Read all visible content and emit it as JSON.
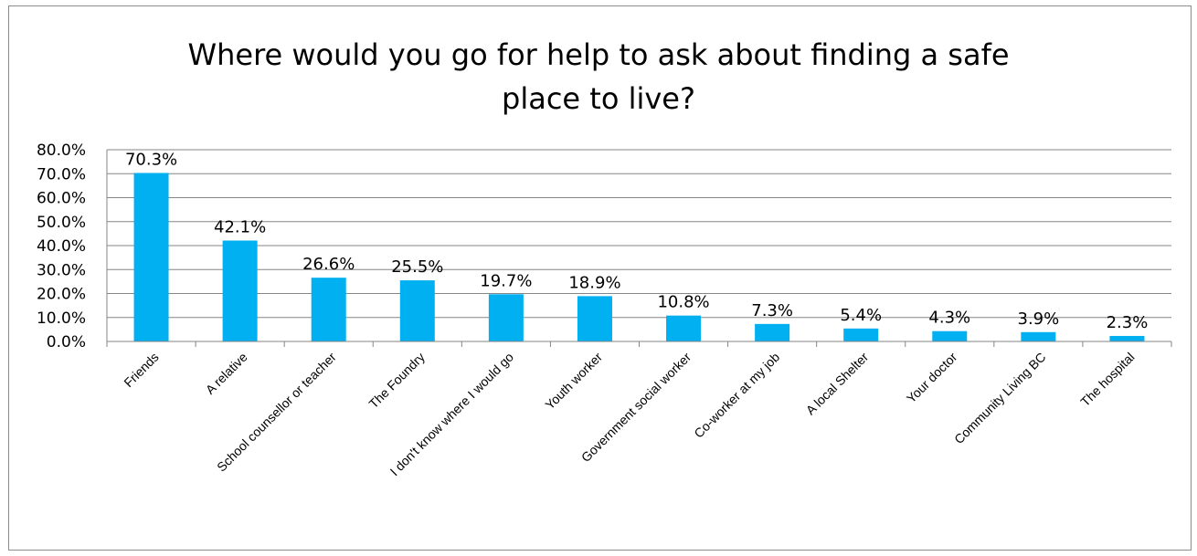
{
  "chart_data": {
    "type": "bar",
    "title_lines": [
      "Where would you go for help to ask about finding a safe",
      "place to live?"
    ],
    "categories": [
      "Friends",
      "A relative",
      "School counsellor or teacher",
      "The Foundry",
      "I don't know where I would go",
      "Youth worker",
      "Government social worker",
      "Co-worker at my job",
      "A local Shelter",
      "Your doctor",
      "Community Living BC",
      "The hospital"
    ],
    "values": [
      70.3,
      42.1,
      26.6,
      25.5,
      19.7,
      18.9,
      10.8,
      7.3,
      5.4,
      4.3,
      3.9,
      2.3
    ],
    "data_labels": [
      "70.3%",
      "42.1%",
      "26.6%",
      "25.5%",
      "19.7%",
      "18.9%",
      "10.8%",
      "7.3%",
      "5.4%",
      "4.3%",
      "3.9%",
      "2.3%"
    ],
    "y_ticks": [
      "0.0%",
      "10.0%",
      "20.0%",
      "30.0%",
      "40.0%",
      "50.0%",
      "60.0%",
      "70.0%",
      "80.0%"
    ],
    "ylim": [
      0,
      80
    ],
    "grid": true,
    "legend": "none",
    "bar_color": "#00b0f0"
  }
}
